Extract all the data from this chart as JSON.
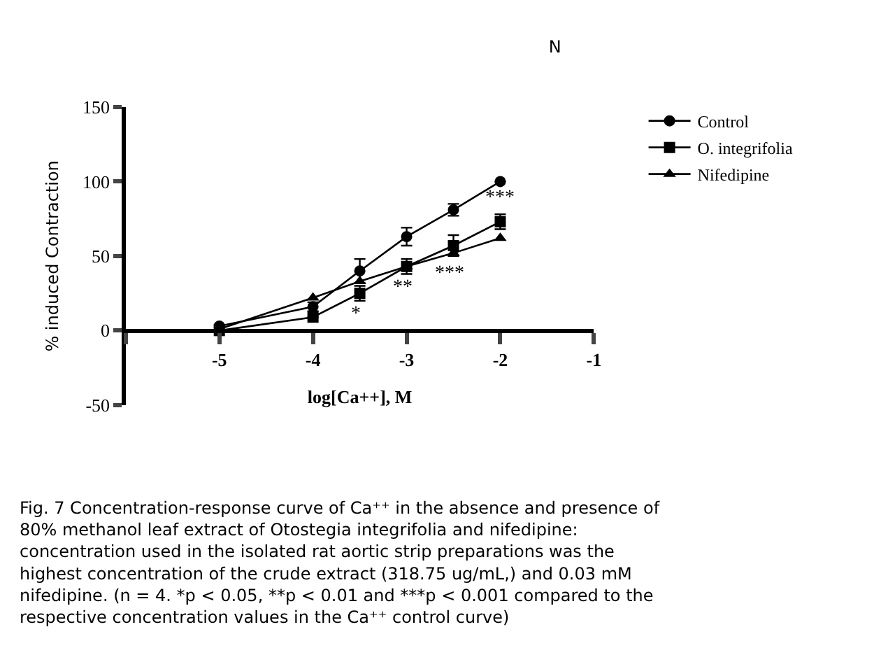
{
  "chart_data": {
    "type": "line",
    "title": "N",
    "xlabel": "log[Ca++], M",
    "ylabel": "% induced Contraction",
    "x": [
      -5,
      -4,
      -3.5,
      -3,
      -2.5,
      -2
    ],
    "series": [
      {
        "name": "Control",
        "color": "#000000",
        "marker": "circle",
        "values": [
          3,
          16,
          40,
          63,
          81,
          100
        ],
        "errors": [
          1,
          3,
          8,
          6,
          4,
          null
        ]
      },
      {
        "name": "O. integrifolia",
        "color": "#000000",
        "marker": "square",
        "values": [
          0,
          9,
          25,
          43,
          57,
          73
        ],
        "errors": [
          null,
          null,
          5,
          5,
          7,
          5
        ]
      },
      {
        "name": "Nifedipine",
        "color": "#000000",
        "marker": "triangle",
        "values": [
          1,
          22,
          33,
          43,
          52,
          62
        ],
        "errors": [
          null,
          null,
          null,
          null,
          null,
          null
        ]
      }
    ],
    "xlim": [
      -6,
      -1
    ],
    "xticks": [
      {
        "value": -6,
        "label": null
      },
      -5,
      -4,
      -3,
      -2,
      -1
    ],
    "ylim": [
      -50,
      150
    ],
    "yticks": [
      -50,
      0,
      50,
      100,
      150
    ],
    "legend": "top right",
    "line_style": "solid",
    "annotations": [
      {
        "text": "*",
        "x": -3.5,
        "y": 25
      },
      {
        "text": "**",
        "x": -3,
        "y": 43
      },
      {
        "text": "***",
        "x": -2.5,
        "y": 52
      },
      {
        "text": "***",
        "x": -2,
        "y": 73
      },
      "Fig. 7 Concentration-response curve of Ca⁺⁺ in the absence and presence of 80% methanol leaf extract of Otostegia integrifolia and nifedipine: concentration used in the isolated rat aortic strip preparations was the highest concentration of the crude extract (318.75 ug/mL,) and 0.03 mM nifedipine. (n = 4. *p < 0.05, **p < 0.01 and ***p < 0.001 compared to the respective concentration values in the Ca⁺⁺ control curve)"
    ]
  }
}
